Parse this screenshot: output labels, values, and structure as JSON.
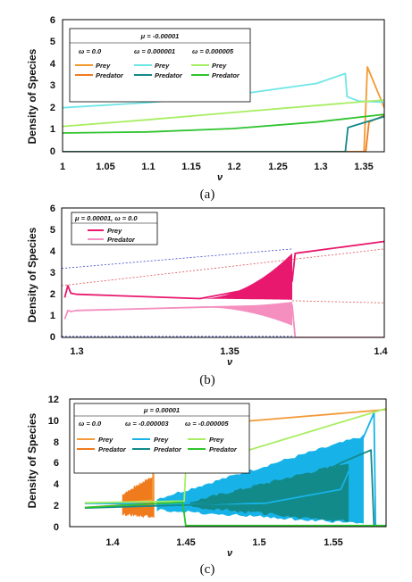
{
  "chart_data": [
    {
      "type": "line",
      "caption": "(a)",
      "ylabel": "Density of Species",
      "xlabel": "ν",
      "xlim": [
        1,
        1.38
      ],
      "ylim": [
        0,
        6
      ],
      "xticks": [
        "1",
        "1.05",
        "1.1",
        "1.15",
        "1.2",
        "1.25",
        "1.3",
        "1.35"
      ],
      "yticks": [
        "0",
        "1",
        "2",
        "3",
        "4",
        "5",
        "6"
      ],
      "legend": {
        "header": "μ = -0.00001",
        "columns": [
          "ω = 0.0",
          "ω = 0.000001",
          "ω = 0.000005"
        ],
        "series_labels": [
          "Prey",
          "Predator"
        ]
      },
      "series": [
        {
          "name": "Prey",
          "group": "ω = 0.0",
          "color": "#f39a2f",
          "x": [
            1,
            1.356,
            1.36,
            1.38
          ],
          "y": [
            0,
            0,
            3.85,
            2.0
          ]
        },
        {
          "name": "Predator",
          "group": "ω = 0.0",
          "color": "#f07b1d",
          "x": [
            1,
            1.358,
            1.362,
            1.38
          ],
          "y": [
            0,
            0,
            1.35,
            1.65
          ]
        },
        {
          "name": "Prey",
          "group": "ω = 0.000001",
          "color": "#6fe6e6",
          "x": [
            1,
            1.1,
            1.2,
            1.3,
            1.334,
            1.336,
            1.35,
            1.38
          ],
          "y": [
            2.0,
            2.23,
            2.57,
            3.1,
            3.55,
            2.5,
            2.3,
            2.25
          ]
        },
        {
          "name": "Predator",
          "group": "ω = 0.000001",
          "color": "#128a8a",
          "x": [
            1,
            1.334,
            1.337,
            1.38
          ],
          "y": [
            0,
            0,
            1.1,
            1.6
          ]
        },
        {
          "name": "Prey",
          "group": "ω = 0.000005",
          "color": "#a8ee62",
          "x": [
            1,
            1.1,
            1.2,
            1.3,
            1.38
          ],
          "y": [
            1.15,
            1.45,
            1.78,
            2.1,
            2.35
          ]
        },
        {
          "name": "Predator",
          "group": "ω = 0.000005",
          "color": "#2ec42e",
          "x": [
            1,
            1.1,
            1.2,
            1.3,
            1.38
          ],
          "y": [
            0.85,
            0.9,
            1.05,
            1.35,
            1.7
          ]
        }
      ]
    },
    {
      "type": "line",
      "caption": "(b)",
      "ylabel": "Density of Species",
      "xlabel": "ν",
      "xlim": [
        1.295,
        1.4
      ],
      "ylim": [
        0,
        6
      ],
      "xticks": [
        "1.3",
        "1.35",
        "1.4"
      ],
      "yticks": [
        "0",
        "1",
        "2",
        "3",
        "4",
        "5",
        "6"
      ],
      "legend": {
        "header": "μ = 0.00001, ω = 0.0",
        "series_labels": [
          "Prey",
          "Predator"
        ]
      },
      "series": [
        {
          "name": "Prey",
          "color": "#e8186e",
          "x": [
            1.296,
            1.297,
            1.298,
            1.3,
            1.34,
            1.37,
            1.371,
            1.4
          ],
          "y": [
            1.85,
            2.4,
            2.05,
            2.0,
            1.8,
            2.6,
            3.9,
            4.45
          ]
        },
        {
          "name": "Predator",
          "color": "#f48fbf",
          "x": [
            1.296,
            1.297,
            1.298,
            1.3,
            1.34,
            1.37,
            1.371,
            1.4
          ],
          "y": [
            0.85,
            1.25,
            1.2,
            1.25,
            1.4,
            1.5,
            0,
            0
          ]
        },
        {
          "name": "",
          "color": "#3b45c8",
          "dashed": true,
          "x": [
            1.295,
            1.37
          ],
          "y": [
            3.2,
            4.1
          ]
        },
        {
          "name": "",
          "color": "#e05050",
          "dashed": true,
          "x": [
            1.295,
            1.4
          ],
          "y": [
            2.4,
            4.1
          ]
        },
        {
          "name": "",
          "color": "#e05050",
          "dashed": true,
          "x": [
            1.37,
            1.4
          ],
          "y": [
            1.7,
            1.6
          ]
        },
        {
          "name": "",
          "color": "#3b45c8",
          "dashed": true,
          "x": [
            1.295,
            1.37
          ],
          "y": [
            0.05,
            0.05
          ]
        }
      ],
      "oscillation_band": {
        "x": [
          1.34,
          1.37
        ],
        "prey": [
          1.8,
          3.9
        ],
        "predator": [
          0.55,
          1.65
        ]
      }
    },
    {
      "type": "line",
      "caption": "(c)",
      "ylabel": "Density of Species",
      "xlabel": "ν",
      "xlim": [
        1.37,
        1.58
      ],
      "ylim": [
        0,
        12
      ],
      "xticks": [
        "1.4",
        "1.45",
        "1.5",
        "1.55"
      ],
      "yticks": [
        "0",
        "2",
        "4",
        "6",
        "8",
        "10",
        "12"
      ],
      "legend": {
        "header": "μ = 0.00001",
        "columns": [
          "ω = 0.0",
          "ω = -0.000003",
          "ω = -0.000005"
        ],
        "series_labels": [
          "Prey",
          "Predator"
        ]
      },
      "series": [
        {
          "name": "Prey",
          "group": "ω = 0.0",
          "color": "#f39a3a",
          "x": [
            1.38,
            1.41,
            1.425,
            1.426,
            1.58
          ],
          "y": [
            2.2,
            2.3,
            2.5,
            9.2,
            11.0
          ]
        },
        {
          "name": "Predator",
          "group": "ω = 0.0",
          "color": "#f07b1d",
          "x": [
            1.38,
            1.425
          ],
          "y": [
            1.8,
            2.2
          ]
        },
        {
          "name": "Prey",
          "group": "ω = -0.000003",
          "color": "#17b3e8",
          "x": [
            1.38,
            1.45,
            1.5,
            1.55,
            1.572,
            1.573
          ],
          "y": [
            2.2,
            2.1,
            2.2,
            3.5,
            10.7,
            0.1
          ]
        },
        {
          "name": "Predator",
          "group": "ω = -0.000003",
          "color": "#128a8a",
          "x": [
            1.38,
            1.45,
            1.5,
            1.55,
            1.57,
            1.572
          ],
          "y": [
            1.75,
            2.05,
            2.4,
            6.0,
            7.2,
            0.1
          ]
        },
        {
          "name": "Prey",
          "group": "ω = -0.000005",
          "color": "#a8ee62",
          "x": [
            1.38,
            1.446,
            1.447,
            1.58
          ],
          "y": [
            2.25,
            2.4,
            5.4,
            11.1
          ]
        },
        {
          "name": "Predator",
          "group": "ω = -0.000005",
          "color": "#2ec42e",
          "x": [
            1.38,
            1.445,
            1.447,
            1.58
          ],
          "y": [
            1.8,
            2.3,
            0.1,
            0.1
          ]
        }
      ],
      "oscillation_bands": [
        {
          "color": "#f07b1d",
          "x": [
            1.405,
            1.426
          ],
          "low": [
            1.2,
            0.9
          ],
          "high": [
            3.0,
            4.8
          ]
        },
        {
          "color": "#17b3e8",
          "x": [
            1.428,
            1.565
          ],
          "low": [
            1.6,
            0.3
          ],
          "high": [
            2.6,
            8.5
          ]
        },
        {
          "color": "#128a8a",
          "x": [
            1.45,
            1.555
          ],
          "low": [
            1.9,
            0.5
          ],
          "high": [
            2.3,
            6.0
          ]
        }
      ]
    }
  ]
}
